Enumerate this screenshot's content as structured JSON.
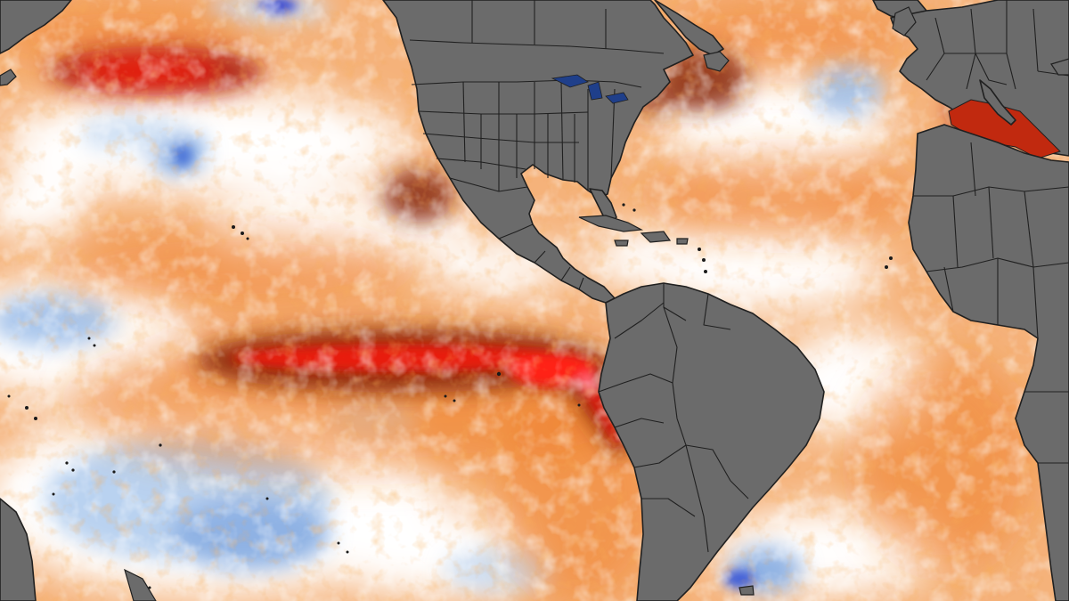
{
  "map": {
    "subject": "sea-surface-temperature-anomaly",
    "colors": {
      "ocean_base": "#f5b27a",
      "warm_strong": "#e81c10",
      "warm_dark": "#a8140c",
      "warm_brown": "#8a2a0c",
      "warm_orange": "#ef7a1f",
      "neutral_white": "#ffffff",
      "cool_light": "#cfe0f4",
      "cool_blue": "#7ba6e0",
      "cool_deep": "#2a3ed0",
      "land": "#6b6b6b",
      "border": "#202020"
    },
    "features": [
      "equatorial-pacific-warm-tongue",
      "north-pacific-warm-blob",
      "north-atlantic-warm-area",
      "mediterranean-warm-area",
      "north-america",
      "south-america",
      "africa",
      "europe"
    ]
  }
}
